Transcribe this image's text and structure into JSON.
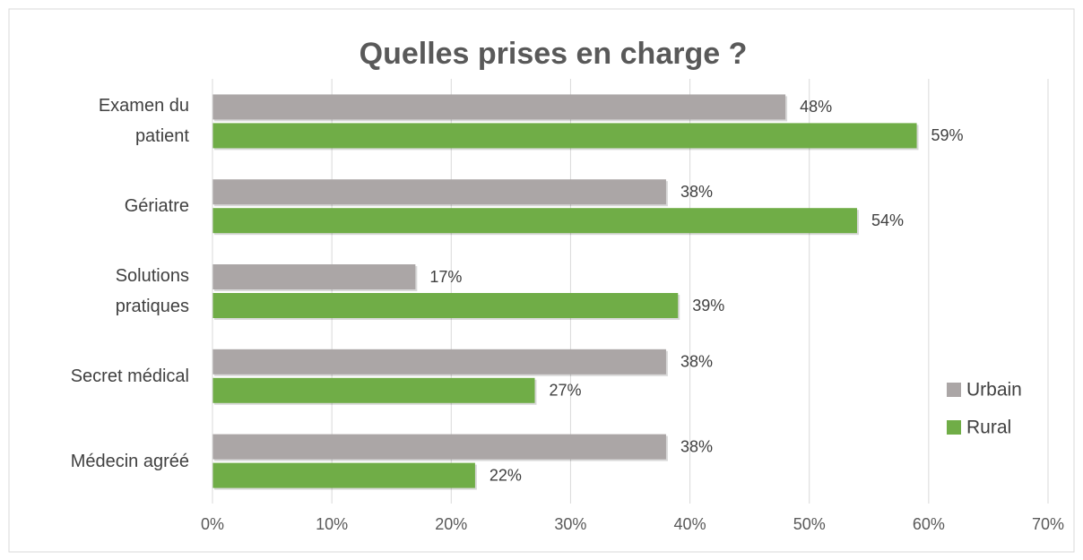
{
  "chart_data": {
    "type": "hbar",
    "title": "Quelles prises en charge ?",
    "categories": [
      "Examen du patient",
      "Gériatre",
      "Solutions pratiques",
      "Secret médical",
      "Médecin agréé"
    ],
    "series": [
      {
        "name": "Urbain",
        "color": "#aba6a6",
        "values": [
          48,
          38,
          17,
          38,
          38
        ],
        "value_labels": [
          "48%",
          "38%",
          "17%",
          "38%",
          "38%"
        ]
      },
      {
        "name": "Rural",
        "color": "#70ad47",
        "values": [
          59,
          54,
          39,
          27,
          22
        ],
        "value_labels": [
          "59%",
          "54%",
          "39%",
          "27%",
          "22%"
        ]
      }
    ],
    "xlim": [
      0,
      70
    ],
    "xticks": [
      {
        "value": 0,
        "label": "0%"
      },
      {
        "value": 10,
        "label": "10%"
      },
      {
        "value": 20,
        "label": "20%"
      },
      {
        "value": 30,
        "label": "30%"
      },
      {
        "value": 40,
        "label": "40%"
      },
      {
        "value": 50,
        "label": "50%"
      },
      {
        "value": 60,
        "label": "60%"
      },
      {
        "value": 70,
        "label": "70%"
      }
    ],
    "grid": true,
    "legend": "right"
  }
}
